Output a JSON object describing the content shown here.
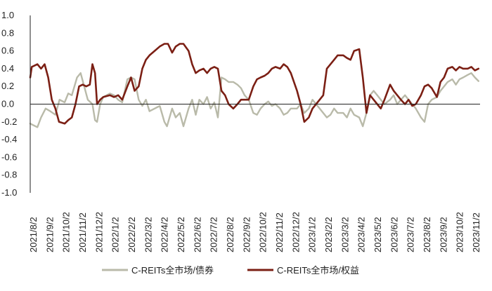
{
  "chart_data": {
    "type": "line",
    "title": "",
    "xlabel": "",
    "ylabel": "",
    "ylim": [
      -1.0,
      1.0
    ],
    "y_ticks": [
      "1.0",
      "0.8",
      "0.6",
      "0.4",
      "0.2",
      "0.0",
      "-0.2",
      "-0.4",
      "-0.6",
      "-0.8",
      "-1.0"
    ],
    "x_tick_labels": [
      "2021/8/2",
      "2021/9/2",
      "2021/10/2",
      "2021/11/2",
      "2021/12/2",
      "2022/1/2",
      "2022/2/2",
      "2022/3/2",
      "2022/4/2",
      "2022/5/2",
      "2022/6/2",
      "2022/7/2",
      "2022/8/2",
      "2022/9/2",
      "2022/10/2",
      "2022/11/2",
      "2022/12/2",
      "2023/1/2",
      "2023/2/2",
      "2023/3/2",
      "2023/4/2",
      "2023/5/2",
      "2023/6/2",
      "2023/7/2",
      "2023/8/2",
      "2023/9/2",
      "2023/10/2",
      "2023/11/2"
    ],
    "grid": false,
    "legend_position": "bottom",
    "series": [
      {
        "name": "C-REITs全市场/债券",
        "color": "#b9baa9",
        "points": [
          [
            "2021-08-02",
            -0.22
          ],
          [
            "2021-08-16",
            -0.26
          ],
          [
            "2021-08-23",
            -0.15
          ],
          [
            "2021-09-01",
            -0.05
          ],
          [
            "2021-09-10",
            -0.08
          ],
          [
            "2021-09-20",
            -0.12
          ],
          [
            "2021-09-28",
            0.05
          ],
          [
            "2021-10-08",
            0.02
          ],
          [
            "2021-10-15",
            0.12
          ],
          [
            "2021-10-22",
            0.1
          ],
          [
            "2021-11-01",
            0.3
          ],
          [
            "2021-11-08",
            0.35
          ],
          [
            "2021-11-15",
            0.2
          ],
          [
            "2021-11-22",
            0.05
          ],
          [
            "2021-12-01",
            0.0
          ],
          [
            "2021-12-06",
            -0.18
          ],
          [
            "2021-12-10",
            -0.2
          ],
          [
            "2021-12-16",
            0.0
          ],
          [
            "2021-12-22",
            0.08
          ],
          [
            "2022-01-04",
            0.12
          ],
          [
            "2022-01-12",
            0.1
          ],
          [
            "2022-01-20",
            0.05
          ],
          [
            "2022-01-28",
            0.02
          ],
          [
            "2022-02-07",
            0.28
          ],
          [
            "2022-02-14",
            0.3
          ],
          [
            "2022-02-21",
            0.28
          ],
          [
            "2022-03-01",
            0.05
          ],
          [
            "2022-03-08",
            -0.02
          ],
          [
            "2022-03-15",
            0.05
          ],
          [
            "2022-03-22",
            -0.08
          ],
          [
            "2022-04-01",
            -0.05
          ],
          [
            "2022-04-11",
            -0.02
          ],
          [
            "2022-04-20",
            -0.2
          ],
          [
            "2022-04-25",
            -0.25
          ],
          [
            "2022-05-05",
            -0.05
          ],
          [
            "2022-05-12",
            -0.15
          ],
          [
            "2022-05-20",
            -0.1
          ],
          [
            "2022-05-27",
            -0.25
          ],
          [
            "2022-06-06",
            -0.05
          ],
          [
            "2022-06-13",
            0.05
          ],
          [
            "2022-06-20",
            -0.12
          ],
          [
            "2022-06-27",
            0.05
          ],
          [
            "2022-07-05",
            0.0
          ],
          [
            "2022-07-12",
            0.08
          ],
          [
            "2022-07-19",
            -0.05
          ],
          [
            "2022-07-26",
            0.02
          ],
          [
            "2022-08-02",
            -0.15
          ],
          [
            "2022-08-09",
            0.3
          ],
          [
            "2022-08-16",
            0.28
          ],
          [
            "2022-08-23",
            0.25
          ],
          [
            "2022-09-01",
            0.25
          ],
          [
            "2022-09-09",
            0.22
          ],
          [
            "2022-09-16",
            0.18
          ],
          [
            "2022-09-23",
            0.1
          ],
          [
            "2022-10-01",
            0.05
          ],
          [
            "2022-10-10",
            -0.1
          ],
          [
            "2022-10-17",
            -0.12
          ],
          [
            "2022-10-24",
            -0.05
          ],
          [
            "2022-11-01",
            0.0
          ],
          [
            "2022-11-08",
            0.03
          ],
          [
            "2022-11-15",
            -0.02
          ],
          [
            "2022-11-22",
            0.0
          ],
          [
            "2022-12-01",
            -0.05
          ],
          [
            "2022-12-08",
            -0.12
          ],
          [
            "2022-12-15",
            -0.1
          ],
          [
            "2022-12-22",
            -0.05
          ],
          [
            "2023-01-03",
            -0.05
          ],
          [
            "2023-01-10",
            0.0
          ],
          [
            "2023-01-17",
            -0.1
          ],
          [
            "2023-01-26",
            -0.05
          ],
          [
            "2023-02-02",
            0.05
          ],
          [
            "2023-02-09",
            0.0
          ],
          [
            "2023-02-16",
            -0.05
          ],
          [
            "2023-02-23",
            -0.1
          ],
          [
            "2023-03-02",
            -0.15
          ],
          [
            "2023-03-09",
            -0.12
          ],
          [
            "2023-03-16",
            -0.05
          ],
          [
            "2023-03-23",
            -0.1
          ],
          [
            "2023-04-03",
            -0.1
          ],
          [
            "2023-04-10",
            -0.15
          ],
          [
            "2023-04-17",
            -0.05
          ],
          [
            "2023-04-24",
            -0.12
          ],
          [
            "2023-05-04",
            -0.15
          ],
          [
            "2023-05-11",
            -0.25
          ],
          [
            "2023-05-18",
            -0.1
          ],
          [
            "2023-05-25",
            0.1
          ],
          [
            "2023-06-01",
            0.15
          ],
          [
            "2023-06-08",
            0.1
          ],
          [
            "2023-06-15",
            0.05
          ],
          [
            "2023-06-22",
            0.0
          ],
          [
            "2023-07-03",
            0.05
          ],
          [
            "2023-07-10",
            0.1
          ],
          [
            "2023-07-17",
            0.0
          ],
          [
            "2023-07-24",
            0.05
          ],
          [
            "2023-08-01",
            0.1
          ],
          [
            "2023-08-08",
            0.05
          ],
          [
            "2023-08-15",
            0.0
          ],
          [
            "2023-08-22",
            -0.05
          ],
          [
            "2023-09-01",
            -0.15
          ],
          [
            "2023-09-08",
            -0.2
          ],
          [
            "2023-09-15",
            0.0
          ],
          [
            "2023-09-22",
            0.05
          ],
          [
            "2023-10-02",
            0.08
          ],
          [
            "2023-10-09",
            0.15
          ],
          [
            "2023-10-16",
            0.2
          ],
          [
            "2023-10-23",
            0.25
          ],
          [
            "2023-11-01",
            0.28
          ],
          [
            "2023-11-08",
            0.22
          ],
          [
            "2023-11-15",
            0.28
          ],
          [
            "2023-11-22",
            0.3
          ],
          [
            "2023-12-01",
            0.33
          ],
          [
            "2023-12-08",
            0.35
          ],
          [
            "2023-12-15",
            0.3
          ],
          [
            "2023-12-22",
            0.26
          ]
        ]
      },
      {
        "name": "C-REITs全市场/权益",
        "color": "#7b1f14",
        "points": [
          [
            "2021-08-02",
            0.3
          ],
          [
            "2021-08-05",
            0.42
          ],
          [
            "2021-08-16",
            0.45
          ],
          [
            "2021-08-23",
            0.4
          ],
          [
            "2021-08-30",
            0.45
          ],
          [
            "2021-09-06",
            0.3
          ],
          [
            "2021-09-13",
            0.05
          ],
          [
            "2021-09-20",
            -0.05
          ],
          [
            "2021-09-27",
            -0.2
          ],
          [
            "2021-10-08",
            -0.22
          ],
          [
            "2021-10-15",
            -0.18
          ],
          [
            "2021-10-22",
            -0.15
          ],
          [
            "2021-10-29",
            0.0
          ],
          [
            "2021-11-05",
            0.2
          ],
          [
            "2021-11-12",
            0.22
          ],
          [
            "2021-11-19",
            0.2
          ],
          [
            "2021-11-26",
            0.22
          ],
          [
            "2021-12-01",
            0.45
          ],
          [
            "2021-12-06",
            0.35
          ],
          [
            "2021-12-10",
            0.0
          ],
          [
            "2021-12-16",
            0.05
          ],
          [
            "2021-12-22",
            0.08
          ],
          [
            "2022-01-04",
            0.1
          ],
          [
            "2022-01-12",
            0.08
          ],
          [
            "2022-01-20",
            0.1
          ],
          [
            "2022-01-28",
            0.05
          ],
          [
            "2022-02-07",
            0.2
          ],
          [
            "2022-02-14",
            0.3
          ],
          [
            "2022-02-21",
            0.15
          ],
          [
            "2022-03-01",
            0.2
          ],
          [
            "2022-03-08",
            0.4
          ],
          [
            "2022-03-15",
            0.5
          ],
          [
            "2022-03-22",
            0.55
          ],
          [
            "2022-04-01",
            0.6
          ],
          [
            "2022-04-11",
            0.65
          ],
          [
            "2022-04-20",
            0.68
          ],
          [
            "2022-04-27",
            0.68
          ],
          [
            "2022-05-05",
            0.58
          ],
          [
            "2022-05-12",
            0.65
          ],
          [
            "2022-05-20",
            0.68
          ],
          [
            "2022-05-27",
            0.68
          ],
          [
            "2022-06-06",
            0.6
          ],
          [
            "2022-06-13",
            0.45
          ],
          [
            "2022-06-20",
            0.35
          ],
          [
            "2022-06-27",
            0.38
          ],
          [
            "2022-07-05",
            0.4
          ],
          [
            "2022-07-12",
            0.35
          ],
          [
            "2022-07-19",
            0.4
          ],
          [
            "2022-07-26",
            0.42
          ],
          [
            "2022-08-02",
            0.4
          ],
          [
            "2022-08-09",
            0.15
          ],
          [
            "2022-08-16",
            0.1
          ],
          [
            "2022-08-23",
            0.0
          ],
          [
            "2022-09-01",
            -0.05
          ],
          [
            "2022-09-09",
            0.0
          ],
          [
            "2022-09-16",
            0.05
          ],
          [
            "2022-09-23",
            0.05
          ],
          [
            "2022-10-01",
            0.05
          ],
          [
            "2022-10-10",
            0.2
          ],
          [
            "2022-10-17",
            0.28
          ],
          [
            "2022-10-24",
            0.3
          ],
          [
            "2022-11-01",
            0.32
          ],
          [
            "2022-11-08",
            0.35
          ],
          [
            "2022-11-15",
            0.4
          ],
          [
            "2022-11-22",
            0.42
          ],
          [
            "2022-12-01",
            0.4
          ],
          [
            "2022-12-08",
            0.45
          ],
          [
            "2022-12-15",
            0.42
          ],
          [
            "2022-12-22",
            0.35
          ],
          [
            "2023-01-03",
            0.15
          ],
          [
            "2023-01-10",
            0.0
          ],
          [
            "2023-01-17",
            -0.2
          ],
          [
            "2023-01-26",
            -0.15
          ],
          [
            "2023-02-02",
            -0.05
          ],
          [
            "2023-02-09",
            0.0
          ],
          [
            "2023-02-16",
            0.05
          ],
          [
            "2023-02-23",
            0.1
          ],
          [
            "2023-03-02",
            0.4
          ],
          [
            "2023-03-09",
            0.45
          ],
          [
            "2023-03-16",
            0.5
          ],
          [
            "2023-03-23",
            0.55
          ],
          [
            "2023-04-03",
            0.55
          ],
          [
            "2023-04-10",
            0.52
          ],
          [
            "2023-04-17",
            0.5
          ],
          [
            "2023-04-24",
            0.6
          ],
          [
            "2023-05-04",
            0.62
          ],
          [
            "2023-05-11",
            0.3
          ],
          [
            "2023-05-18",
            -0.1
          ],
          [
            "2023-05-25",
            0.1
          ],
          [
            "2023-06-01",
            0.05
          ],
          [
            "2023-06-08",
            0.0
          ],
          [
            "2023-06-15",
            -0.05
          ],
          [
            "2023-06-22",
            0.05
          ],
          [
            "2023-07-03",
            0.22
          ],
          [
            "2023-07-10",
            0.15
          ],
          [
            "2023-07-17",
            0.1
          ],
          [
            "2023-07-24",
            0.05
          ],
          [
            "2023-08-01",
            0.0
          ],
          [
            "2023-08-08",
            0.05
          ],
          [
            "2023-08-15",
            -0.02
          ],
          [
            "2023-08-22",
            0.0
          ],
          [
            "2023-09-01",
            0.1
          ],
          [
            "2023-09-08",
            0.2
          ],
          [
            "2023-09-15",
            0.22
          ],
          [
            "2023-09-22",
            0.18
          ],
          [
            "2023-10-02",
            0.08
          ],
          [
            "2023-10-09",
            0.25
          ],
          [
            "2023-10-16",
            0.3
          ],
          [
            "2023-10-23",
            0.4
          ],
          [
            "2023-11-01",
            0.42
          ],
          [
            "2023-11-08",
            0.38
          ],
          [
            "2023-11-15",
            0.42
          ],
          [
            "2023-11-22",
            0.4
          ],
          [
            "2023-12-01",
            0.4
          ],
          [
            "2023-12-08",
            0.42
          ],
          [
            "2023-12-15",
            0.38
          ],
          [
            "2023-12-22",
            0.4
          ]
        ]
      }
    ]
  }
}
